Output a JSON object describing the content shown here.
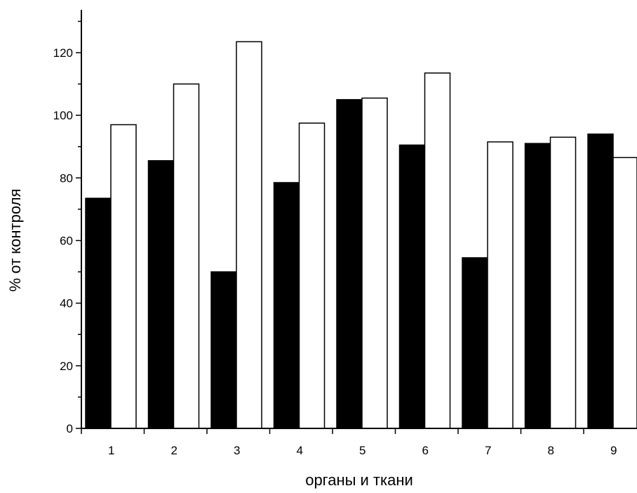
{
  "chart_data": {
    "type": "bar",
    "title": "",
    "xlabel": "органы и ткани",
    "ylabel": "% от контроля",
    "categories": [
      "1",
      "2",
      "3",
      "4",
      "5",
      "6",
      "7",
      "8",
      "9"
    ],
    "series": [
      {
        "fill": "#000000",
        "values": [
          73.5,
          85.5,
          50,
          78.5,
          105,
          90.5,
          54.5,
          91,
          94
        ]
      },
      {
        "fill": "#ffffff",
        "values": [
          97,
          110,
          123.5,
          97.5,
          105.5,
          113.5,
          91.5,
          93,
          86.5
        ]
      }
    ],
    "yticks": [
      "0",
      "20",
      "40",
      "60",
      "80",
      "100",
      "120"
    ],
    "ylim": [
      0,
      133
    ],
    "grid": false,
    "legend": "none"
  }
}
